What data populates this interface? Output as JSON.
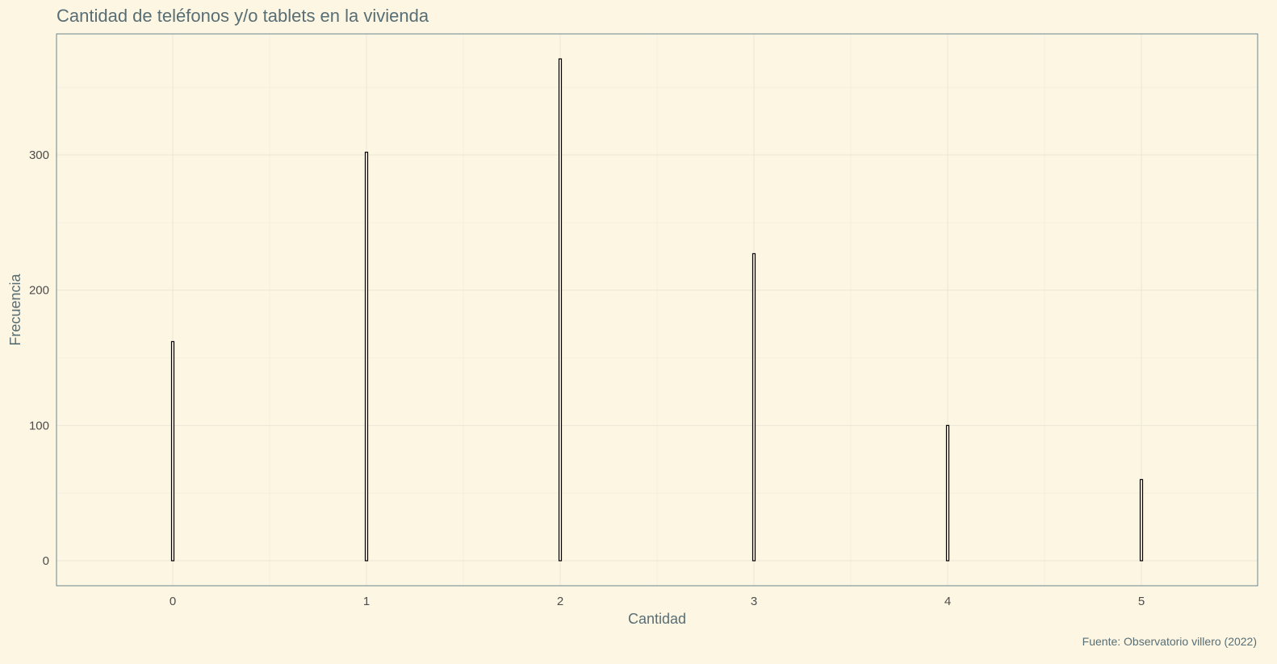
{
  "chart_data": {
    "type": "bar",
    "title": "Cantidad de teléfonos y/o tablets en la vivienda",
    "xlabel": "Cantidad",
    "ylabel": "Frecuencia",
    "caption": "Fuente: Observatorio villero (2022)",
    "categories": [
      0,
      1,
      2,
      3,
      4,
      5
    ],
    "values": [
      162,
      302,
      371,
      227,
      100,
      60
    ],
    "x_ticks": [
      "0",
      "1",
      "2",
      "3",
      "4",
      "5"
    ],
    "y_ticks": [
      "0",
      "100",
      "200",
      "300"
    ],
    "xlim": [
      -0.6,
      5.6
    ],
    "ylim": [
      -18.5,
      389.5
    ],
    "grid": true,
    "legend": "none",
    "colors": {
      "background": "#fdf6e3",
      "bar_fill": "#fdf6e3",
      "bar_outline": "#000000",
      "text": "#586e75",
      "border": "#6a878d"
    }
  }
}
